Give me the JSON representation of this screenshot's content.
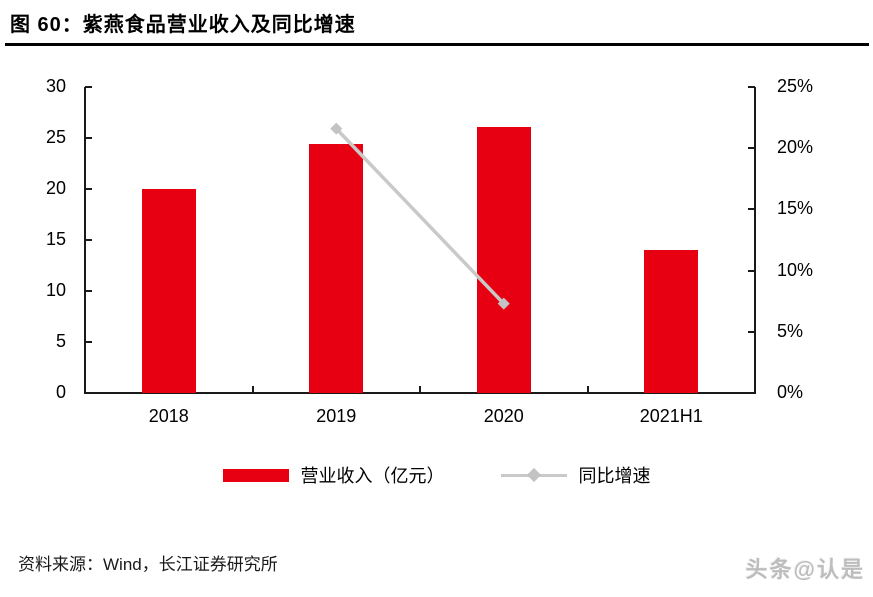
{
  "figure": {
    "title": "图 60：紫燕食品营业收入及同比增速",
    "source": "资料来源：Wind，长江证券研究所",
    "watermark": "头条@认是"
  },
  "colors": {
    "bar_red": "#e60012",
    "line_gray": "#c9c9c9",
    "marker_gray": "#c3c3c3",
    "axis_black": "#1a1a1a"
  },
  "chart_data": {
    "type": "bar",
    "subtype": "bar+line dual-axis",
    "categories": [
      "2018",
      "2019",
      "2020",
      "2021H1"
    ],
    "series": [
      {
        "name": "营业收入（亿元）",
        "type": "bar",
        "axis": "left",
        "color": "#e60012",
        "values": [
          20.0,
          24.4,
          26.1,
          14.0
        ]
      },
      {
        "name": "同比增速",
        "type": "line",
        "axis": "right",
        "color": "#c9c9c9",
        "values": [
          null,
          21.6,
          7.3,
          null
        ]
      }
    ],
    "left_axis": {
      "min": 0,
      "max": 30,
      "ticks": [
        0,
        5,
        10,
        15,
        20,
        25,
        30
      ],
      "labels": [
        "0",
        "5",
        "10",
        "15",
        "20",
        "25",
        "30"
      ]
    },
    "right_axis": {
      "min": 0,
      "max": 25,
      "ticks": [
        0,
        5,
        10,
        15,
        20,
        25
      ],
      "labels": [
        "0%",
        "5%",
        "10%",
        "15%",
        "20%",
        "25%"
      ]
    },
    "grid": false,
    "legend_position": "bottom"
  }
}
